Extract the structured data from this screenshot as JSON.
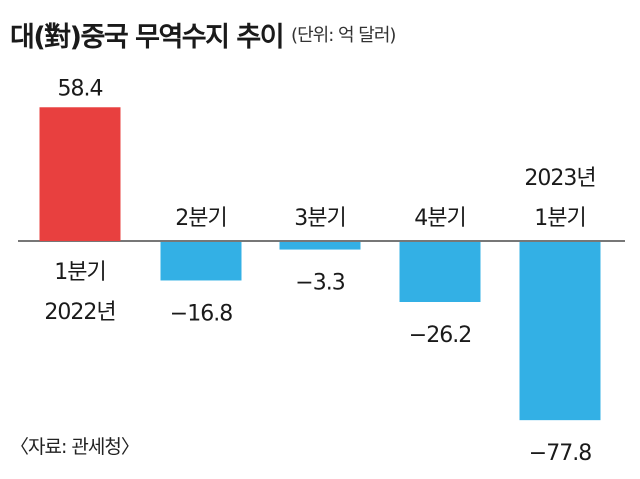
{
  "header": {
    "title": "대(對)중국 무역수지 추이",
    "unit": "(단위: 억 달러)"
  },
  "footer": {
    "source": "〈자료: 관세청〉"
  },
  "colors": {
    "positive": "#e8403f",
    "negative": "#33b0e5",
    "axis": "#777777"
  },
  "chart_data": {
    "type": "bar",
    "unit": "억 달러",
    "categories": [
      [
        "1분기",
        "2022년"
      ],
      [
        "2분기"
      ],
      [
        "3분기"
      ],
      [
        "4분기"
      ],
      [
        "2023년",
        "1분기"
      ]
    ],
    "values": [
      58.4,
      -16.8,
      -3.3,
      -26.2,
      -77.8
    ],
    "value_labels": [
      "58.4",
      "−16.8",
      "−3.3",
      "−26.2",
      "−77.8"
    ],
    "ylim": [
      -77.8,
      58.4
    ],
    "grid": false,
    "legend": "none"
  }
}
